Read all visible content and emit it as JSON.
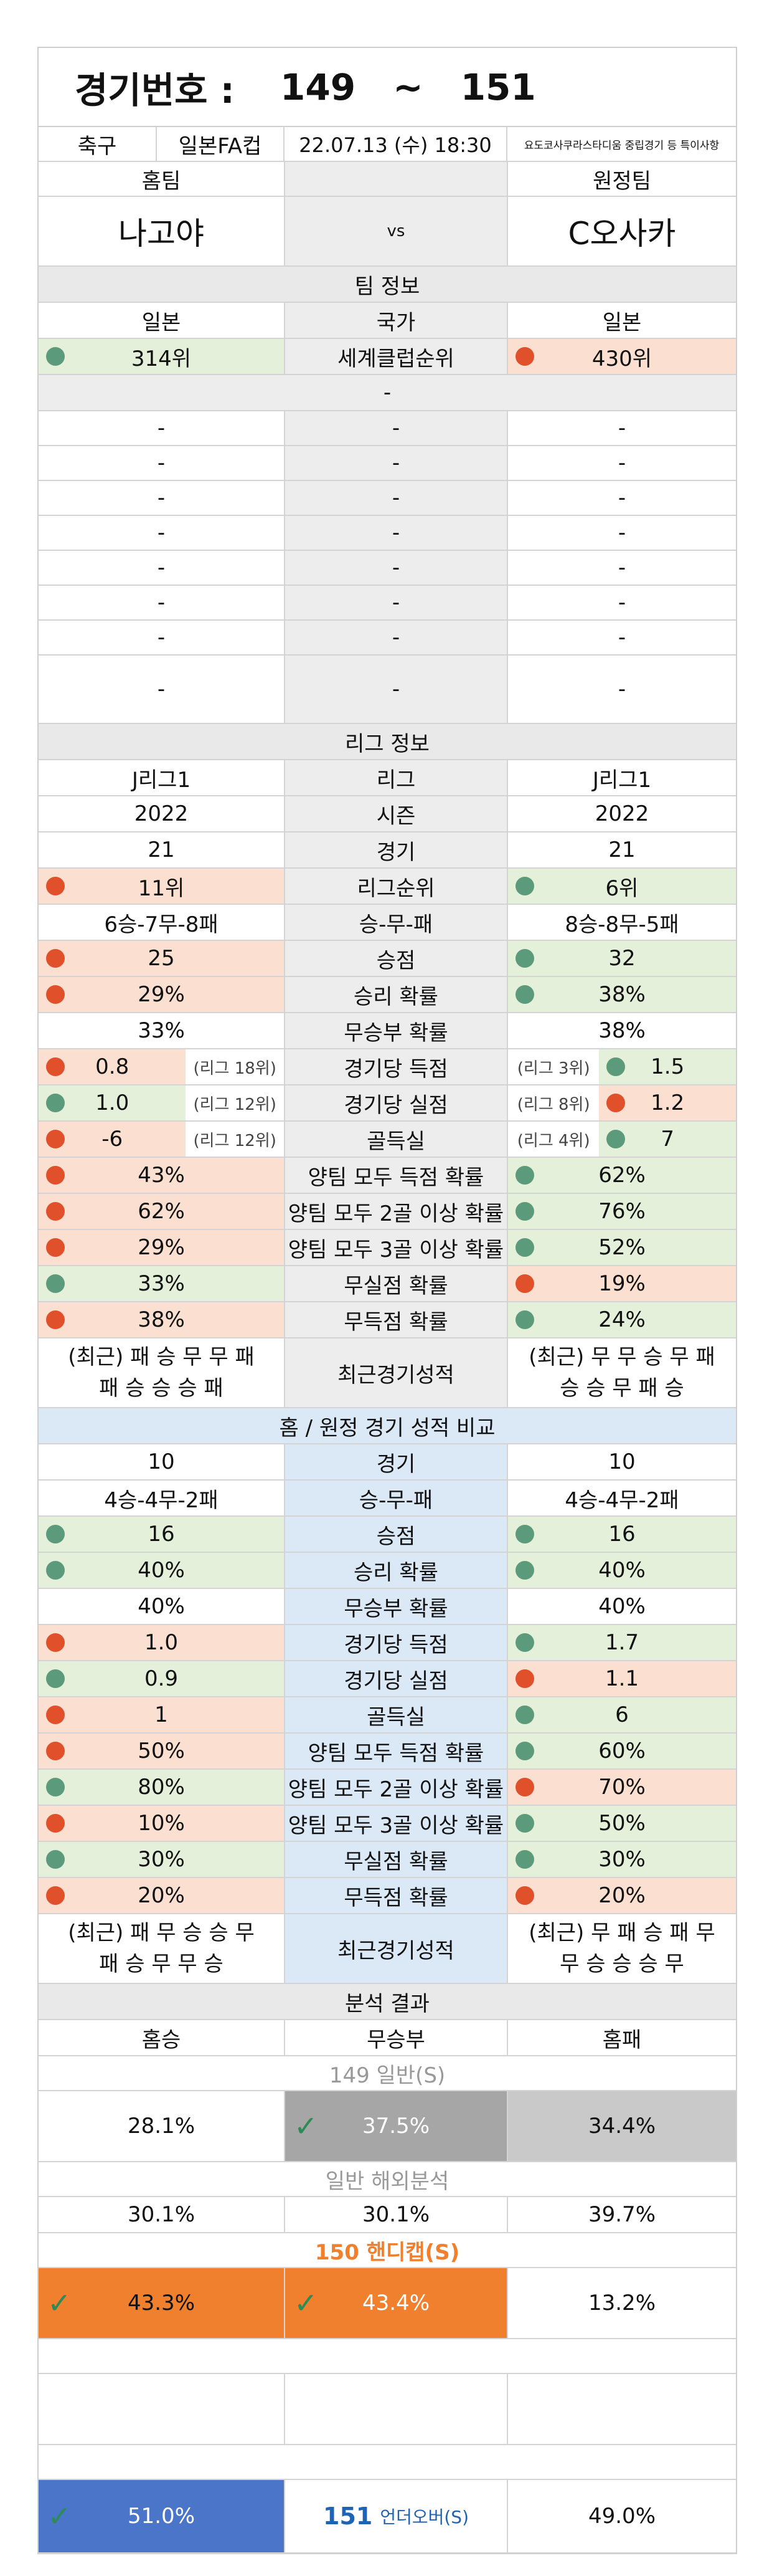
{
  "header": {
    "label": "경기번호 :",
    "from": "149",
    "tilde": "~",
    "to": "151"
  },
  "match": {
    "sport": "축구",
    "league": "일본FA컵",
    "datetime": "22.07.13 (수) 18:30",
    "note": "요도코사쿠라스타디움 중립경기 등 특이사항"
  },
  "teams": {
    "home_label": "홈팀",
    "away_label": "원정팀",
    "home": "나고야",
    "vs": "vs",
    "away": "C오사카"
  },
  "team_info": {
    "title": "팀 정보",
    "country": [
      "일본",
      "국가",
      "일본"
    ],
    "rank": [
      "314위",
      "세계클럽순위",
      "430위"
    ],
    "dash": "-"
  },
  "league_info": {
    "title": "리그 정보",
    "rows": [
      [
        "J리그1",
        "리그",
        "J리그1"
      ],
      [
        "2022",
        "시즌",
        "2022"
      ],
      [
        "21",
        "경기",
        "21"
      ],
      [
        "11위",
        "리그순위",
        "6위"
      ],
      [
        "6승-7무-8패",
        "승-무-패",
        "8승-8무-5패"
      ],
      [
        "25",
        "승점",
        "32"
      ],
      [
        "29%",
        "승리 확률",
        "38%"
      ],
      [
        "33%",
        "무승부 확률",
        "38%"
      ],
      [
        "0.8",
        "경기당 득점",
        "1.5"
      ],
      [
        "1.0",
        "경기당 실점",
        "1.2"
      ],
      [
        "-6",
        "골득실",
        "7"
      ],
      [
        "43%",
        "양팀 모두 득점 확률",
        "62%"
      ],
      [
        "62%",
        "양팀 모두 2골 이상 확률",
        "76%"
      ],
      [
        "29%",
        "양팀 모두 3골 이상 확률",
        "52%"
      ],
      [
        "33%",
        "무실점 확률",
        "19%"
      ],
      [
        "38%",
        "무득점 확률",
        "24%"
      ]
    ],
    "sub_home": [
      "(리그 18위)",
      "(리그 12위)",
      "(리그 12위)"
    ],
    "sub_away": [
      "(리그 3위)",
      "(리그 8위)",
      "(리그 4위)"
    ],
    "recent_home1": "(최근) 패 승 무 무 패",
    "recent_home2": "패 승 승 승 패",
    "recent_label": "최근경기성적",
    "recent_away1": "(최근) 무 무 승 무 패",
    "recent_away2": "승 승 무 패 승"
  },
  "compare": {
    "title": "홈 / 원정 경기 성적 비교",
    "rows": [
      [
        "10",
        "경기",
        "10"
      ],
      [
        "4승-4무-2패",
        "승-무-패",
        "4승-4무-2패"
      ],
      [
        "16",
        "승점",
        "16"
      ],
      [
        "40%",
        "승리 확률",
        "40%"
      ],
      [
        "40%",
        "무승부 확률",
        "40%"
      ],
      [
        "1.0",
        "경기당 득점",
        "1.7"
      ],
      [
        "0.9",
        "경기당 실점",
        "1.1"
      ],
      [
        "1",
        "골득실",
        "6"
      ],
      [
        "50%",
        "양팀 모두 득점 확률",
        "60%"
      ],
      [
        "80%",
        "양팀 모두 2골 이상 확률",
        "70%"
      ],
      [
        "10%",
        "양팀 모두 3골 이상 확률",
        "50%"
      ],
      [
        "30%",
        "무실점 확률",
        "30%"
      ],
      [
        "20%",
        "무득점 확률",
        "20%"
      ]
    ],
    "recent_home1": "(최근) 패 무 승 승 무",
    "recent_home2": "패 승 무 무 승",
    "recent_label": "최근경기성적",
    "recent_away1": "(최근) 무 패 승 패 무",
    "recent_away2": "무 승 승 승 무"
  },
  "analysis": {
    "title": "분석 결과",
    "cols": [
      "홈승",
      "무승부",
      "홈패"
    ],
    "general_title": "149 일반(S)",
    "general": [
      "28.1%",
      "37.5%",
      "34.4%"
    ],
    "overseas_title": "일반 해외분석",
    "overseas": [
      "30.1%",
      "30.1%",
      "39.7%"
    ],
    "handicap_title": "150 핸디캡(S)",
    "handicap": [
      "43.3%",
      "43.4%",
      "13.2%"
    ],
    "uo_home": "51.0%",
    "uo_num": "151",
    "uo_label": "언더오버(S)",
    "uo_away": "49.0%",
    "check": "✓"
  },
  "colors": {
    "green_dot": "#5c9a7c",
    "red_dot": "#e0502a",
    "orange": "#f07f2e",
    "blue": "#4a75c8",
    "dark_gray": "#a6a6a6",
    "light_gray": "#c9c9c9"
  }
}
